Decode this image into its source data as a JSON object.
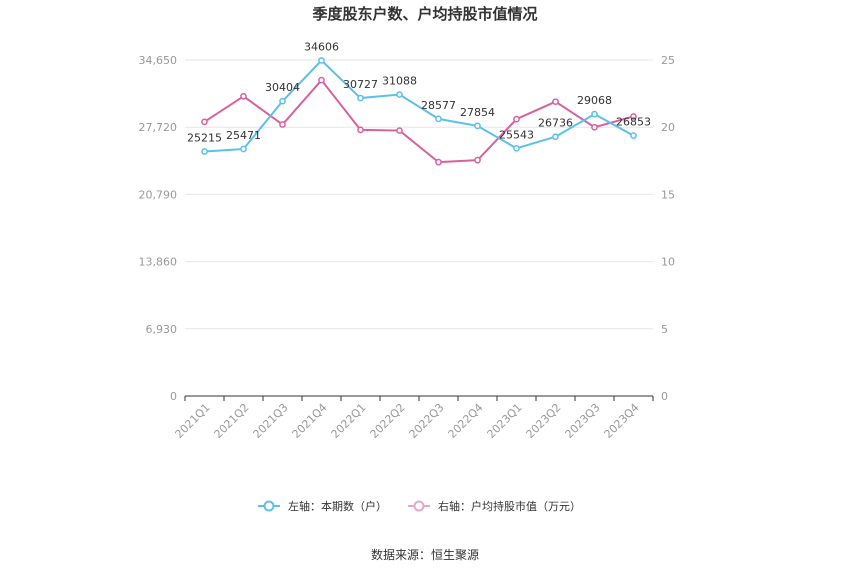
{
  "chart_data": {
    "type": "line",
    "title": "季度股东户数、户均持股市值情况",
    "categories": [
      "2021Q1",
      "2021Q2",
      "2021Q3",
      "2021Q4",
      "2022Q1",
      "2022Q2",
      "2022Q3",
      "2022Q4",
      "2023Q1",
      "2023Q2",
      "2023Q3",
      "2023Q4"
    ],
    "left_axis": {
      "ticks": [
        "0",
        "6,930",
        "13,860",
        "20,790",
        "27,720",
        "34,650"
      ],
      "ylim": [
        0,
        34650
      ]
    },
    "right_axis": {
      "ticks": [
        "0",
        "5",
        "10",
        "15",
        "20",
        "25"
      ],
      "ylim": [
        0,
        25
      ]
    },
    "series": [
      {
        "name": "左轴：本期数（户）",
        "axis": "left",
        "color": "#5bc0eb",
        "values": [
          25215,
          25471,
          30404,
          34606,
          30727,
          31088,
          28577,
          27854,
          25543,
          26736,
          29068,
          26853
        ],
        "labels": [
          "25215",
          "25471",
          "30404",
          "34606",
          "30727",
          "31088",
          "28577",
          "27854",
          "25543",
          "26736",
          "29068",
          "26853"
        ]
      },
      {
        "name": "右轴：户均持股市值（万元）",
        "axis": "right",
        "color": "#d9609f",
        "values": [
          20.4,
          22.3,
          20.2,
          23.5,
          19.8,
          19.75,
          17.4,
          17.55,
          20.6,
          21.9,
          20.0,
          20.8
        ]
      }
    ],
    "grid": true,
    "legend_position": "bottom"
  },
  "source": "数据来源：恒生聚源"
}
